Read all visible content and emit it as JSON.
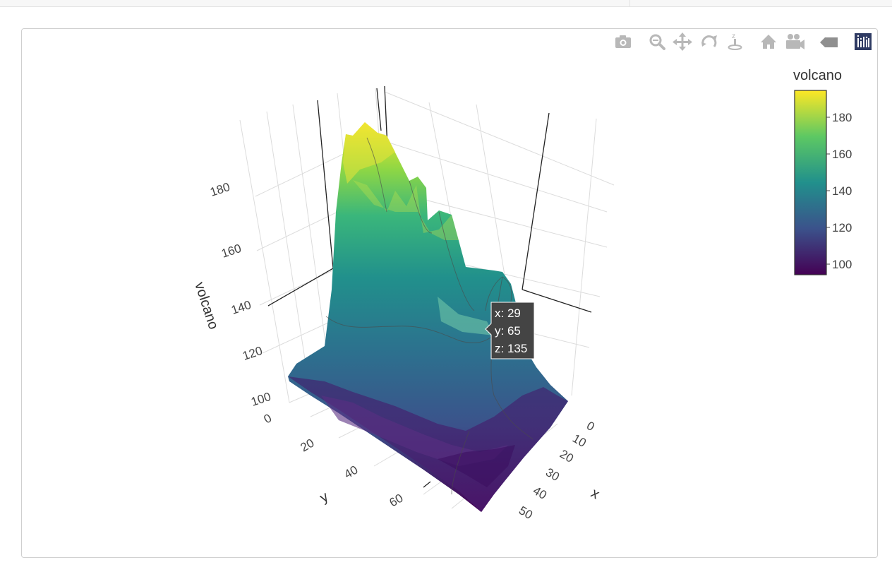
{
  "chart_data": {
    "type": "surface",
    "title": "",
    "axes": {
      "x": {
        "title": "x",
        "ticks": [
          "0",
          "10",
          "20",
          "30",
          "40",
          "50"
        ],
        "range": [
          0,
          61
        ]
      },
      "y": {
        "title": "y",
        "ticks": [
          "0",
          "20",
          "40",
          "60"
        ],
        "range": [
          0,
          87
        ]
      },
      "z": {
        "title": "volcano",
        "ticks": [
          "100",
          "120",
          "140",
          "160",
          "180"
        ],
        "range": [
          94,
          195
        ]
      }
    },
    "colorbar": {
      "title": "volcano",
      "ticks": [
        "180",
        "160",
        "140",
        "120",
        "100"
      ],
      "range": [
        94,
        195
      ],
      "colorscale": [
        "#440154",
        "#3b528b",
        "#21908c",
        "#5dc863",
        "#fde725"
      ]
    },
    "hover": {
      "x_label": "x: 29",
      "y_label": "y: 65",
      "z_label": "z: 135"
    },
    "grid": true
  },
  "modebar": {
    "buttons": [
      "camera-icon",
      "zoom-icon",
      "pan-icon",
      "orbit-rotate-icon",
      "turntable-icon",
      "reset-home-icon",
      "reset-camera-icon",
      "hover-closest-icon",
      "plotly-logo-icon"
    ],
    "accent": "#2f3b63",
    "icon_color": "#b8b8b8"
  }
}
